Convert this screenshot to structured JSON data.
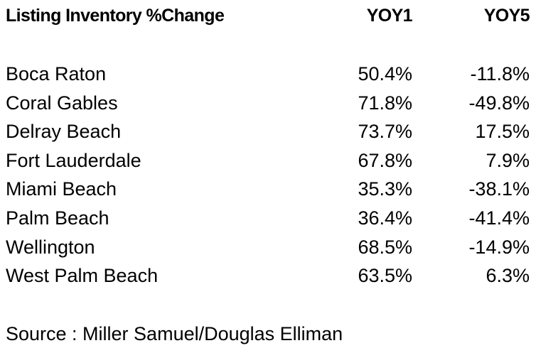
{
  "table": {
    "header": [
      "Listing Inventory %Change",
      "YOY1",
      "YOY5"
    ],
    "rows": [
      [
        "Boca Raton",
        "50.4%",
        "-11.8%"
      ],
      [
        "Coral Gables",
        "71.8%",
        "-49.8%"
      ],
      [
        "Delray Beach",
        "73.7%",
        "17.5%"
      ],
      [
        "Fort Lauderdale",
        "67.8%",
        "7.9%"
      ],
      [
        "Miami Beach",
        "35.3%",
        "-38.1%"
      ],
      [
        "Palm Beach",
        "36.4%",
        "-41.4%"
      ],
      [
        "Wellington",
        "68.5%",
        "-14.9%"
      ],
      [
        "West Palm Beach",
        "63.5%",
        "6.3%"
      ]
    ]
  },
  "source": "Source : Miller Samuel/Douglas Elliman"
}
